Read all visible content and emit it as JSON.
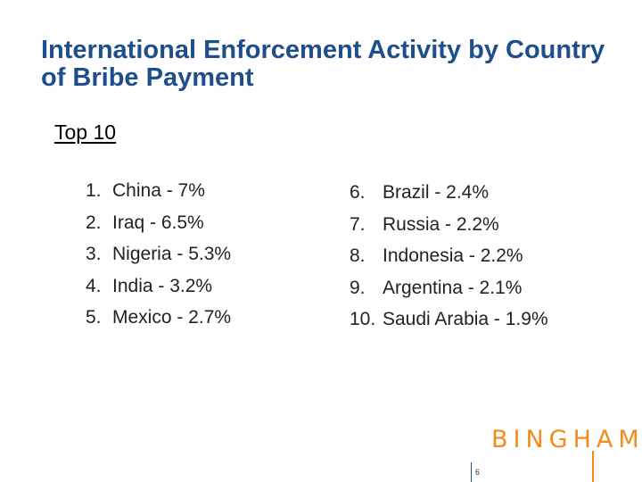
{
  "title": "International Enforcement Activity by Country of Bribe Payment",
  "subtitle": "Top 10",
  "list_left": [
    {
      "num": "1.",
      "text": "China - 7%"
    },
    {
      "num": "2.",
      "text": "Iraq - 6.5%"
    },
    {
      "num": "3.",
      "text": "Nigeria - 5.3%"
    },
    {
      "num": "4.",
      "text": "India - 3.2%"
    },
    {
      "num": "5.",
      "text": "Mexico - 2.7%"
    }
  ],
  "list_right": [
    {
      "num": "6.",
      "text": "Brazil - 2.4%"
    },
    {
      "num": "7.",
      "text": "Russia - 2.2%"
    },
    {
      "num": "8.",
      "text": "Indonesia - 2.2%"
    },
    {
      "num": "9.",
      "text": "Argentina - 2.1%"
    },
    {
      "num": "10.",
      "text": "Saudi Arabia - 1.9%"
    }
  ],
  "logo": "BINGHAM",
  "page_number": "6",
  "colors": {
    "title": "#1f4e8c",
    "logo": "#f28c1a"
  }
}
